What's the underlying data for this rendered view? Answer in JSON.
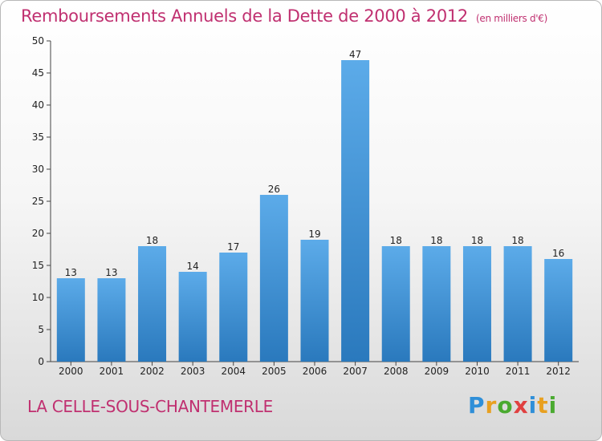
{
  "header": {
    "title": "Remboursements Annuels de la Dette de 2000 à 2012",
    "unit": "(en milliers d'€)"
  },
  "footer": {
    "city": "LA CELLE-SOUS-CHANTEMERLE",
    "logo_letters": [
      "P",
      "r",
      "o",
      "x",
      "i",
      "t",
      "i"
    ]
  },
  "colors": {
    "title": "#c03070",
    "bar_light": "#5aa8e6",
    "bar_dark": "#2a7cc0",
    "axis": "#333333",
    "grid": "#e6e6e6"
  },
  "chart_data": {
    "type": "bar",
    "title": "Remboursements Annuels de la Dette de 2000 à 2012",
    "ylabel": "",
    "xlabel": "",
    "categories": [
      "2000",
      "2001",
      "2002",
      "2003",
      "2004",
      "2005",
      "2006",
      "2007",
      "2008",
      "2009",
      "2010",
      "2011",
      "2012"
    ],
    "values": [
      13,
      13,
      18,
      14,
      17,
      26,
      19,
      47,
      18,
      18,
      18,
      18,
      16
    ],
    "ylim": [
      0,
      50
    ],
    "yticks": [
      0,
      5,
      10,
      15,
      20,
      25,
      30,
      35,
      40,
      45,
      50
    ],
    "data_labels": true,
    "grid": false
  }
}
